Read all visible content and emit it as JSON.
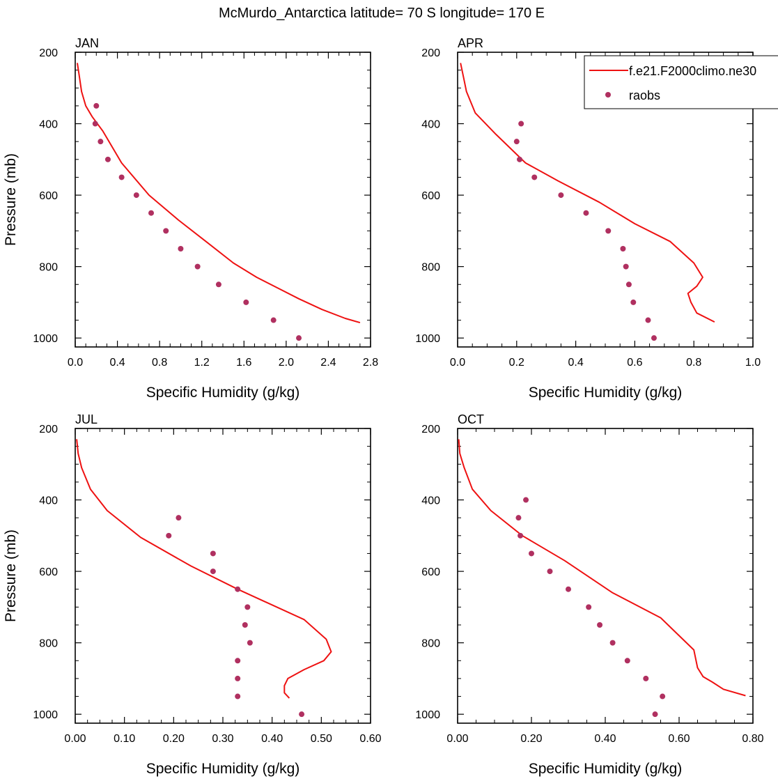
{
  "figure": {
    "title": "McMurdo_Antarctica  latitude= 70 S longitude= 170 E"
  },
  "legend": {
    "model_label": "f.e21.F2000climo.ne30",
    "obs_label": "raobs"
  },
  "colors": {
    "model_line": "#ee1111",
    "obs_marker": "#b03060",
    "axes": "#000000"
  },
  "chart_data": [
    {
      "type": "line+scatter",
      "panel": "JAN",
      "xlabel": "Specific Humidity (g/kg)",
      "ylabel": "Pressure (mb)",
      "xlim": [
        0,
        2.8
      ],
      "ylim": [
        200,
        1025
      ],
      "y_reversed": true,
      "xticks": [
        0,
        0.4,
        0.8,
        1.2,
        1.6,
        2.0,
        2.4,
        2.8
      ],
      "xtick_labels": [
        "0.0",
        "0.4",
        "0.8",
        "1.2",
        "1.6",
        "2.0",
        "2.4",
        "2.8"
      ],
      "yticks": [
        200,
        400,
        600,
        800,
        1000
      ],
      "ytick_labels": [
        "200",
        "400",
        "600",
        "800",
        "1000"
      ],
      "series": [
        {
          "name": "f.e21.F2000climo.ne30",
          "kind": "line",
          "x": [
            0.02,
            0.04,
            0.06,
            0.1,
            0.16,
            0.26,
            0.44,
            0.7,
            0.98,
            1.24,
            1.5,
            1.72,
            1.92,
            2.12,
            2.34,
            2.56,
            2.7
          ],
          "y": [
            230,
            270,
            310,
            350,
            380,
            420,
            510,
            600,
            670,
            730,
            790,
            830,
            860,
            890,
            920,
            945,
            957
          ]
        },
        {
          "name": "raobs",
          "kind": "scatter",
          "x": [
            0.2,
            0.19,
            0.24,
            0.31,
            0.44,
            0.58,
            0.72,
            0.86,
            1.0,
            1.16,
            1.36,
            1.62,
            1.88,
            2.12
          ],
          "y": [
            350,
            400,
            450,
            500,
            550,
            600,
            650,
            700,
            750,
            800,
            850,
            900,
            950,
            1000
          ]
        }
      ]
    },
    {
      "type": "line+scatter",
      "panel": "APR",
      "xlabel": "Specific Humidity (g/kg)",
      "ylabel": "",
      "xlim": [
        0,
        1.0
      ],
      "ylim": [
        200,
        1025
      ],
      "y_reversed": true,
      "xticks": [
        0,
        0.2,
        0.4,
        0.6,
        0.8,
        1.0
      ],
      "xtick_labels": [
        "0.0",
        "0.2",
        "0.4",
        "0.6",
        "0.8",
        "1.0"
      ],
      "yticks": [
        200,
        400,
        600,
        800,
        1000
      ],
      "ytick_labels": [
        "200",
        "400",
        "600",
        "800",
        "1000"
      ],
      "series": [
        {
          "name": "f.e21.F2000climo.ne30",
          "kind": "line",
          "x": [
            0.01,
            0.02,
            0.03,
            0.06,
            0.13,
            0.23,
            0.34,
            0.48,
            0.6,
            0.72,
            0.8,
            0.83,
            0.81,
            0.78,
            0.79,
            0.81,
            0.87
          ],
          "y": [
            230,
            270,
            310,
            370,
            430,
            510,
            560,
            620,
            680,
            730,
            790,
            830,
            855,
            875,
            900,
            930,
            955
          ]
        },
        {
          "name": "raobs",
          "kind": "scatter",
          "x": [
            0.215,
            0.2,
            0.21,
            0.26,
            0.35,
            0.435,
            0.51,
            0.56,
            0.57,
            0.58,
            0.595,
            0.645,
            0.665
          ],
          "y": [
            400,
            450,
            500,
            550,
            600,
            650,
            700,
            750,
            800,
            850,
            900,
            950,
            1000
          ]
        }
      ]
    },
    {
      "type": "line+scatter",
      "panel": "JUL",
      "xlabel": "Specific Humidity (g/kg)",
      "ylabel": "Pressure (mb)",
      "xlim": [
        0,
        0.6
      ],
      "ylim": [
        200,
        1025
      ],
      "y_reversed": true,
      "xticks": [
        0,
        0.1,
        0.2,
        0.3,
        0.4,
        0.5,
        0.6
      ],
      "xtick_labels": [
        "0.00",
        "0.10",
        "0.20",
        "0.30",
        "0.40",
        "0.50",
        "0.60"
      ],
      "yticks": [
        200,
        400,
        600,
        800,
        1000
      ],
      "ytick_labels": [
        "200",
        "400",
        "600",
        "800",
        "1000"
      ],
      "series": [
        {
          "name": "f.e21.F2000climo.ne30",
          "kind": "line",
          "x": [
            0.003,
            0.006,
            0.013,
            0.031,
            0.065,
            0.133,
            0.235,
            0.33,
            0.465,
            0.51,
            0.52,
            0.505,
            0.465,
            0.432,
            0.425,
            0.425,
            0.435
          ],
          "y": [
            230,
            270,
            310,
            370,
            430,
            505,
            585,
            650,
            735,
            790,
            825,
            850,
            875,
            900,
            920,
            940,
            955
          ]
        },
        {
          "name": "raobs",
          "kind": "scatter",
          "x": [
            0.21,
            0.19,
            0.28,
            0.28,
            0.33,
            0.35,
            0.345,
            0.355,
            0.33,
            0.33,
            0.33,
            0.46
          ],
          "y": [
            450,
            500,
            550,
            600,
            650,
            700,
            750,
            800,
            850,
            900,
            950,
            1000
          ]
        }
      ]
    },
    {
      "type": "line+scatter",
      "panel": "OCT",
      "xlabel": "Specific Humidity (g/kg)",
      "ylabel": "",
      "xlim": [
        0,
        0.8
      ],
      "ylim": [
        200,
        1025
      ],
      "y_reversed": true,
      "xticks": [
        0,
        0.2,
        0.4,
        0.6,
        0.8
      ],
      "xtick_labels": [
        "0.00",
        "0.20",
        "0.40",
        "0.60",
        "0.80"
      ],
      "yticks": [
        200,
        400,
        600,
        800,
        1000
      ],
      "ytick_labels": [
        "200",
        "400",
        "600",
        "800",
        "1000"
      ],
      "series": [
        {
          "name": "f.e21.F2000climo.ne30",
          "kind": "line",
          "x": [
            0.003,
            0.006,
            0.018,
            0.04,
            0.09,
            0.175,
            0.29,
            0.42,
            0.55,
            0.61,
            0.64,
            0.65,
            0.665,
            0.69,
            0.72,
            0.78
          ],
          "y": [
            230,
            270,
            310,
            370,
            430,
            500,
            570,
            660,
            730,
            790,
            820,
            870,
            895,
            910,
            930,
            948
          ]
        },
        {
          "name": "raobs",
          "kind": "scatter",
          "x": [
            0.185,
            0.165,
            0.17,
            0.2,
            0.25,
            0.3,
            0.355,
            0.385,
            0.42,
            0.46,
            0.51,
            0.555,
            0.535
          ],
          "y": [
            400,
            450,
            500,
            550,
            600,
            650,
            700,
            750,
            800,
            850,
            900,
            950,
            1000
          ]
        }
      ]
    }
  ]
}
